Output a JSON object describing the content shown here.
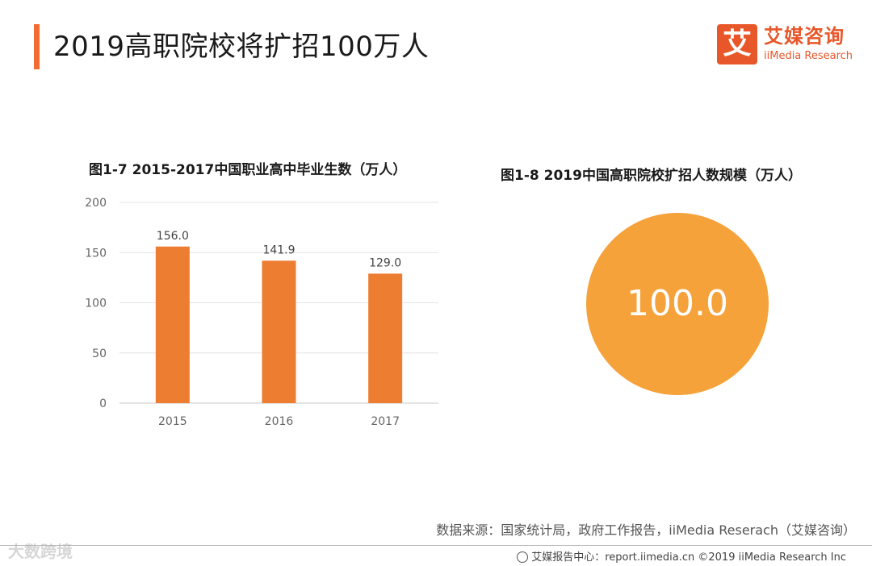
{
  "header": {
    "title": "2019高职院校将扩招100万人",
    "accent_color": "#f26b33"
  },
  "logo": {
    "mark": "艾",
    "name_cn": "艾媒咨询",
    "name_en": "iiMedia Research",
    "color": "#e8572a"
  },
  "chart_data": [
    {
      "type": "bar",
      "title": "图1-7 2015-2017中国职业高中毕业生数（万人）",
      "categories": [
        "2015",
        "2016",
        "2017"
      ],
      "values": [
        156.0,
        141.9,
        129.0
      ],
      "data_labels": [
        "156.0",
        "141.9",
        "129.0"
      ],
      "ylim": [
        0,
        200
      ],
      "yticks": [
        0,
        50,
        100,
        150,
        200
      ],
      "grid": true,
      "bar_color": "#ed7d31"
    },
    {
      "type": "bubble",
      "title": "图1-8 2019中国高职院校扩招人数规模（万人）",
      "value": 100.0,
      "value_label": "100.0",
      "color": "#f6a23a"
    }
  ],
  "source": {
    "text": "数据来源：国家统计局，政府工作报告，iiMedia Reserach（艾媒咨询）"
  },
  "footer": {
    "text": "艾媒报告中心：report.iimedia.cn  ©2019  iiMedia Research  Inc"
  },
  "watermark": {
    "text": "大数跨境"
  }
}
